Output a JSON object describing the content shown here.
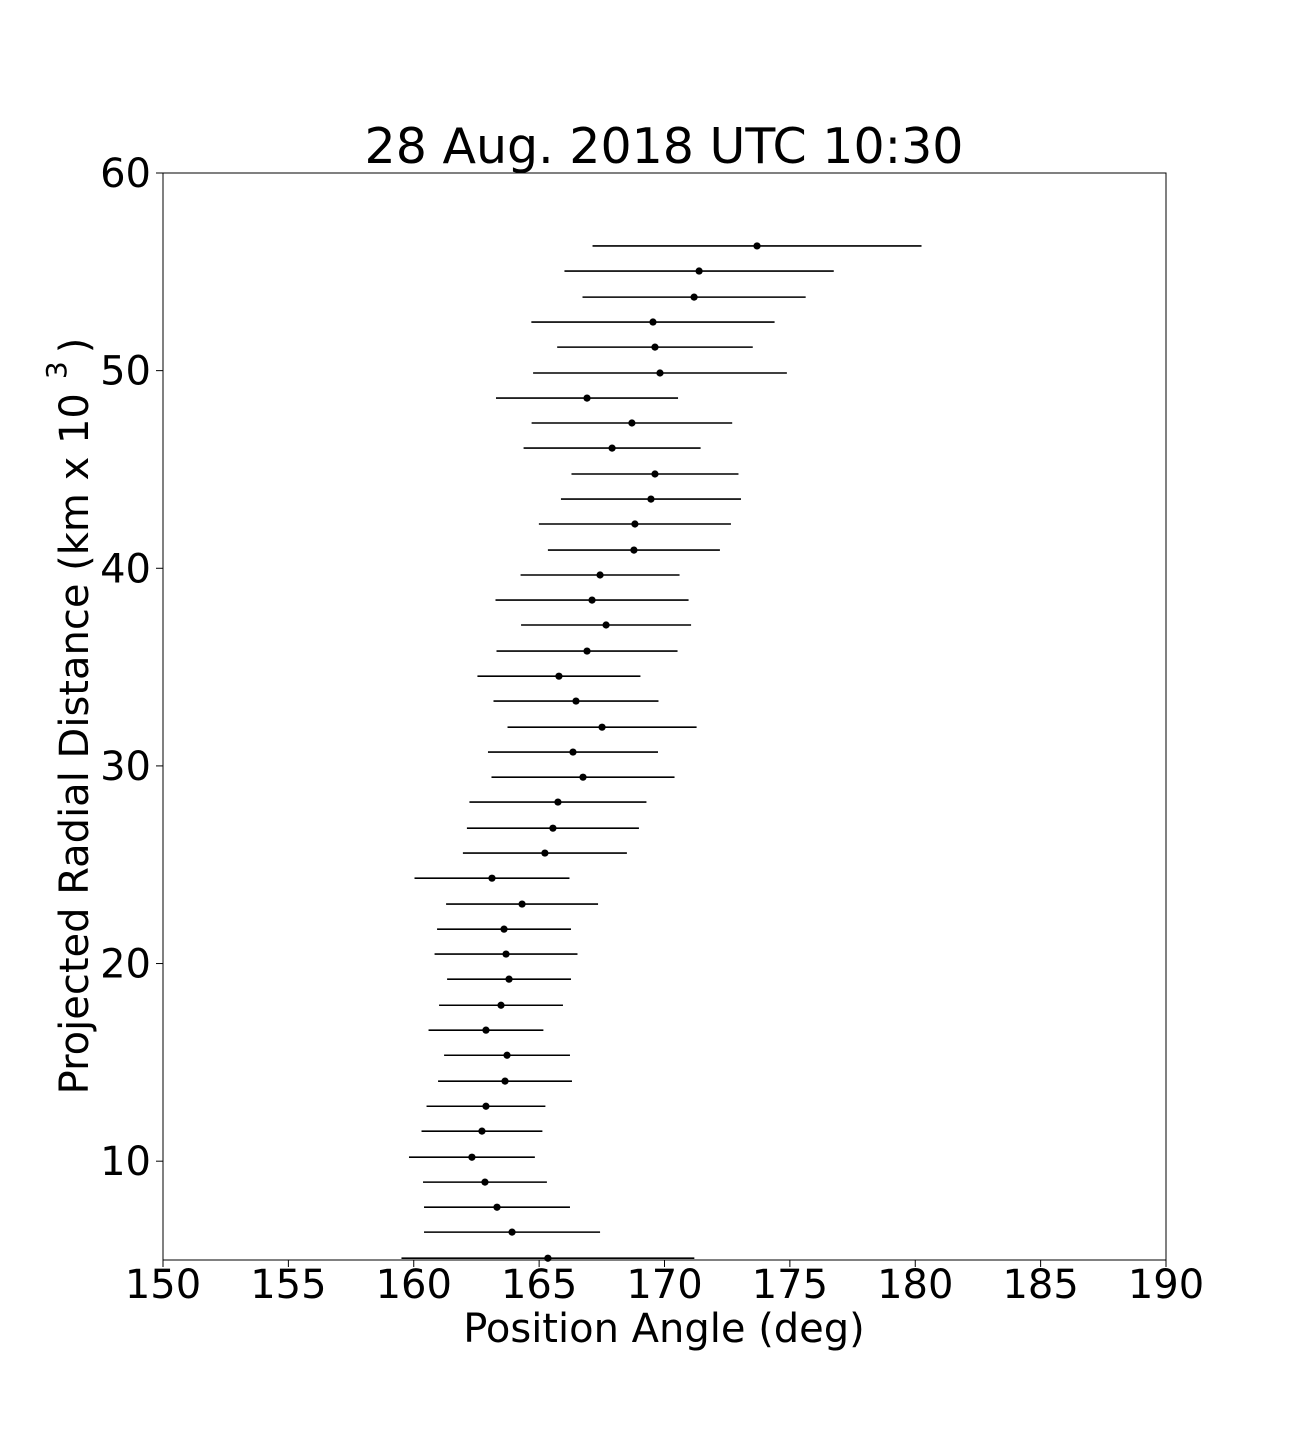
{
  "chart_data": {
    "type": "errorbar-scatter",
    "title": "28 Aug. 2018 UTC 10:30",
    "xlabel": "Position Angle (deg)",
    "ylabel": {
      "text": "Projected Radial Distance (km x 10",
      "superscript": "3",
      "suffix": ")"
    },
    "xlim": [
      150,
      190
    ],
    "xticks": [
      150,
      155,
      160,
      165,
      170,
      175,
      180,
      185,
      190
    ],
    "ylim": [
      5,
      60
    ],
    "yticks": [
      10,
      20,
      30,
      40,
      50,
      60
    ],
    "grid": false,
    "series": [
      {
        "color": "#000000",
        "x": [
          173.69,
          171.38,
          171.18,
          169.54,
          169.62,
          169.82,
          166.91,
          168.7,
          167.91,
          169.62,
          169.46,
          168.82,
          168.78,
          167.43,
          167.11,
          167.67,
          166.91,
          165.79,
          166.47,
          167.51,
          166.35,
          166.75,
          165.75,
          165.55,
          165.23,
          163.12,
          164.32,
          163.6,
          163.68,
          163.8,
          163.48,
          162.88,
          163.72,
          163.64,
          162.88,
          162.72,
          162.32,
          162.84,
          163.32,
          163.92,
          165.35
        ],
        "y": [
          56.31,
          55.04,
          53.72,
          52.46,
          51.19,
          49.88,
          48.61,
          47.35,
          46.08,
          44.77,
          43.5,
          42.24,
          40.92,
          39.66,
          38.39,
          37.13,
          35.81,
          34.54,
          33.28,
          31.96,
          30.7,
          29.43,
          28.17,
          26.85,
          25.59,
          24.32,
          23.01,
          21.74,
          20.48,
          19.21,
          17.89,
          16.63,
          15.36,
          14.05,
          12.78,
          11.52,
          10.2,
          8.94,
          7.67,
          6.41,
          5.09
        ],
        "xerr": [
          6.56,
          5.37,
          4.45,
          4.85,
          3.9,
          5.06,
          3.63,
          4.0,
          3.53,
          3.33,
          3.59,
          3.83,
          3.43,
          3.17,
          3.85,
          3.39,
          3.61,
          3.25,
          3.29,
          3.77,
          3.39,
          3.65,
          3.53,
          3.43,
          3.27,
          3.09,
          3.03,
          2.67,
          2.85,
          2.47,
          2.47,
          2.29,
          2.51,
          2.67,
          2.37,
          2.41,
          2.51,
          2.47,
          2.91,
          3.51,
          5.84
        ]
      }
    ]
  }
}
